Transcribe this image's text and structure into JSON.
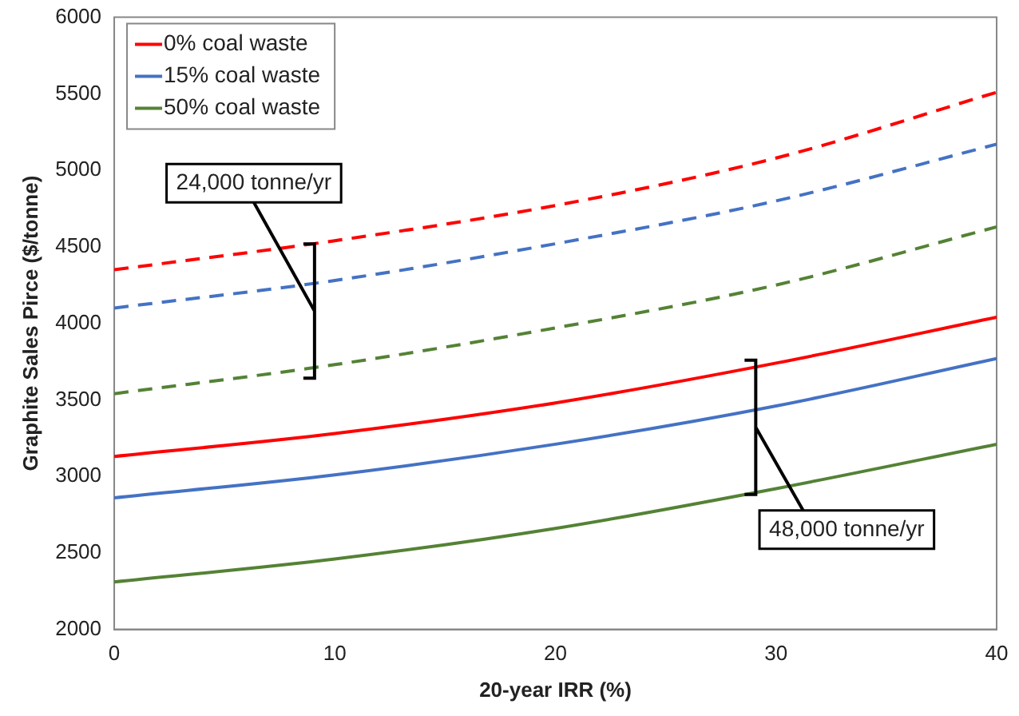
{
  "chart_data": {
    "type": "line",
    "xlabel": "20-year IRR (%)",
    "ylabel": "Graphite Sales Pirce ($/tonne)",
    "x": [
      0,
      10,
      20,
      30,
      40
    ],
    "series": [
      {
        "name": "0% coal waste",
        "color": "#ff0000",
        "values": [
          3130,
          3280,
          3480,
          3740,
          4040
        ]
      },
      {
        "name": "15% coal waste",
        "color": "#4472c4",
        "values": [
          2860,
          3010,
          3210,
          3460,
          3770
        ]
      },
      {
        "name": "50% coal waste",
        "color": "#548235",
        "values": [
          2310,
          2460,
          2660,
          2920,
          3210
        ]
      },
      {
        "color": "#ff0000",
        "line_style": "dashed",
        "values": [
          4350,
          4540,
          4770,
          5080,
          5510
        ]
      },
      {
        "color": "#4472c4",
        "line_style": "dashed",
        "values": [
          4100,
          4280,
          4520,
          4800,
          5170
        ]
      },
      {
        "color": "#548235",
        "line_style": "dashed",
        "values": [
          3540,
          3730,
          3970,
          4250,
          4630
        ]
      }
    ],
    "xlim": [
      0,
      40
    ],
    "xticks": [
      0,
      10,
      20,
      30,
      40
    ],
    "ylim": [
      2000,
      6000
    ],
    "yticks": [
      2000,
      2500,
      3000,
      3500,
      4000,
      4500,
      5000,
      5500,
      6000
    ],
    "grid": false,
    "legend": "top left",
    "marker": "none",
    "line_style": "solid",
    "annotations": [
      "24,000 tonne/yr",
      "48,000 tonne/yr"
    ]
  }
}
